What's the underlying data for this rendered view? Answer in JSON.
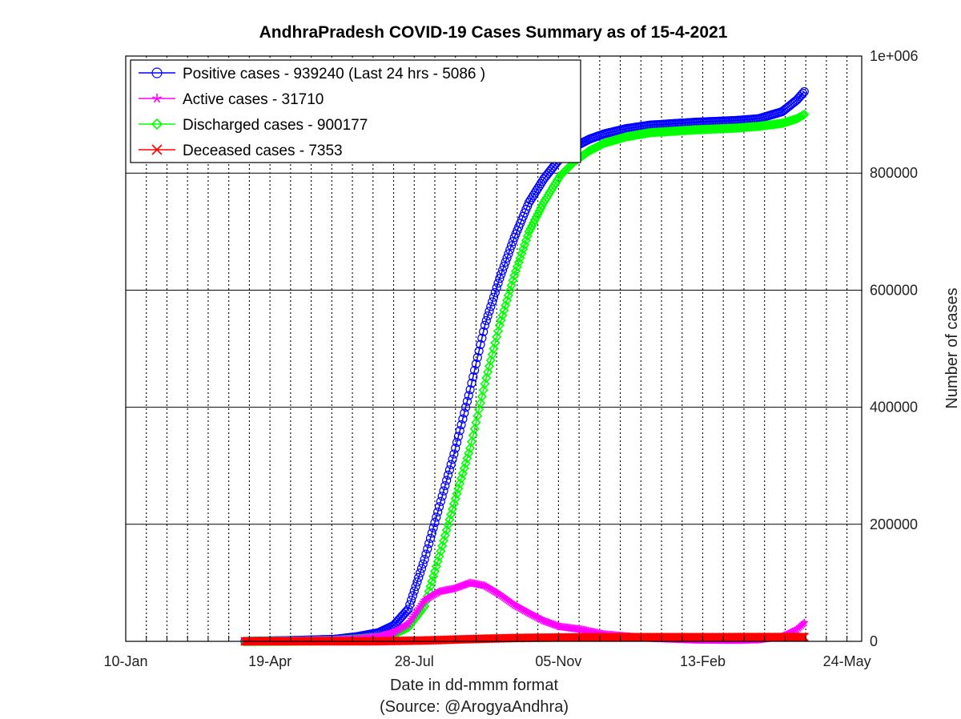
{
  "chart_data": {
    "type": "line",
    "title": "AndhraPradesh COVID-19 Cases Summary as of 15-4-2021",
    "xlabel": "Date in dd-mmm format",
    "source_note": "(Source: @ArogyaAndhra)",
    "ylabel": "Number of cases",
    "x_tick_labels": [
      "10-Jan",
      "19-Apr",
      "28-Jul",
      "05-Nov",
      "13-Feb",
      "24-May"
    ],
    "y_tick_labels": [
      "0",
      "200000",
      "400000",
      "600000",
      "800000",
      "1e+006"
    ],
    "ylim": [
      0,
      1000000
    ],
    "xlim": [
      "2020-01-10",
      "2021-05-24"
    ],
    "y_axis_position": "right",
    "grid": {
      "x": "dotted",
      "y": "solid"
    },
    "legend_position": "top-left",
    "series": [
      {
        "name": "Positive cases - 939240 (Last 24 hrs - 5086 )",
        "color": "#0000ff",
        "marker": "circle",
        "points": [
          [
            "2020-03-31",
            0
          ],
          [
            "2020-04-30",
            1400
          ],
          [
            "2020-05-31",
            3600
          ],
          [
            "2020-06-15",
            8000
          ],
          [
            "2020-06-30",
            15000
          ],
          [
            "2020-07-10",
            27000
          ],
          [
            "2020-07-20",
            55000
          ],
          [
            "2020-07-31",
            140000
          ],
          [
            "2020-08-10",
            230000
          ],
          [
            "2020-08-20",
            320000
          ],
          [
            "2020-08-31",
            430000
          ],
          [
            "2020-09-10",
            540000
          ],
          [
            "2020-09-20",
            620000
          ],
          [
            "2020-09-30",
            690000
          ],
          [
            "2020-10-10",
            750000
          ],
          [
            "2020-10-20",
            790000
          ],
          [
            "2020-10-31",
            825000
          ],
          [
            "2020-11-10",
            845000
          ],
          [
            "2020-11-20",
            858000
          ],
          [
            "2020-11-30",
            867000
          ],
          [
            "2020-12-15",
            876000
          ],
          [
            "2020-12-31",
            882000
          ],
          [
            "2021-01-31",
            887000
          ],
          [
            "2021-02-28",
            890000
          ],
          [
            "2021-03-15",
            893000
          ],
          [
            "2021-03-31",
            905000
          ],
          [
            "2021-04-10",
            925000
          ],
          [
            "2021-04-15",
            939240
          ]
        ]
      },
      {
        "name": "Active cases - 31710",
        "color": "#ff00ff",
        "marker": "star",
        "points": [
          [
            "2020-03-31",
            0
          ],
          [
            "2020-04-30",
            1000
          ],
          [
            "2020-05-31",
            2000
          ],
          [
            "2020-06-15",
            4000
          ],
          [
            "2020-06-30",
            8000
          ],
          [
            "2020-07-10",
            15000
          ],
          [
            "2020-07-20",
            30000
          ],
          [
            "2020-07-31",
            70000
          ],
          [
            "2020-08-10",
            85000
          ],
          [
            "2020-08-20",
            90000
          ],
          [
            "2020-08-31",
            100000
          ],
          [
            "2020-09-10",
            95000
          ],
          [
            "2020-09-20",
            80000
          ],
          [
            "2020-09-30",
            62000
          ],
          [
            "2020-10-10",
            48000
          ],
          [
            "2020-10-20",
            35000
          ],
          [
            "2020-10-31",
            25000
          ],
          [
            "2020-11-15",
            20000
          ],
          [
            "2020-11-30",
            12000
          ],
          [
            "2020-12-31",
            5000
          ],
          [
            "2021-01-31",
            2000
          ],
          [
            "2021-02-28",
            1500
          ],
          [
            "2021-03-15",
            2500
          ],
          [
            "2021-03-31",
            8000
          ],
          [
            "2021-04-10",
            20000
          ],
          [
            "2021-04-15",
            31710
          ]
        ]
      },
      {
        "name": "Discharged cases - 900177",
        "color": "#00ff00",
        "marker": "diamond",
        "points": [
          [
            "2020-03-31",
            0
          ],
          [
            "2020-04-30",
            400
          ],
          [
            "2020-05-31",
            1500
          ],
          [
            "2020-06-15",
            4000
          ],
          [
            "2020-06-30",
            7000
          ],
          [
            "2020-07-10",
            12000
          ],
          [
            "2020-07-20",
            24000
          ],
          [
            "2020-07-31",
            60000
          ],
          [
            "2020-08-10",
            145000
          ],
          [
            "2020-08-20",
            235000
          ],
          [
            "2020-08-31",
            330000
          ],
          [
            "2020-09-10",
            440000
          ],
          [
            "2020-09-20",
            540000
          ],
          [
            "2020-09-30",
            625000
          ],
          [
            "2020-10-10",
            700000
          ],
          [
            "2020-10-20",
            750000
          ],
          [
            "2020-10-31",
            795000
          ],
          [
            "2020-11-10",
            820000
          ],
          [
            "2020-11-20",
            838000
          ],
          [
            "2020-11-30",
            851000
          ],
          [
            "2020-12-15",
            862000
          ],
          [
            "2020-12-31",
            869000
          ],
          [
            "2021-01-31",
            874000
          ],
          [
            "2021-02-28",
            877000
          ],
          [
            "2021-03-15",
            880000
          ],
          [
            "2021-03-31",
            885000
          ],
          [
            "2021-04-10",
            893000
          ],
          [
            "2021-04-15",
            900177
          ]
        ]
      },
      {
        "name": "Deceased cases - 7353",
        "color": "#ff0000",
        "marker": "x",
        "points": [
          [
            "2020-03-31",
            0
          ],
          [
            "2020-05-31",
            60
          ],
          [
            "2020-06-30",
            190
          ],
          [
            "2020-07-31",
            1400
          ],
          [
            "2020-08-31",
            3800
          ],
          [
            "2020-09-30",
            5700
          ],
          [
            "2020-10-31",
            6600
          ],
          [
            "2020-11-30",
            6960
          ],
          [
            "2020-12-31",
            7100
          ],
          [
            "2021-01-31",
            7160
          ],
          [
            "2021-02-28",
            7180
          ],
          [
            "2021-03-31",
            7220
          ],
          [
            "2021-04-15",
            7353
          ]
        ]
      }
    ]
  }
}
